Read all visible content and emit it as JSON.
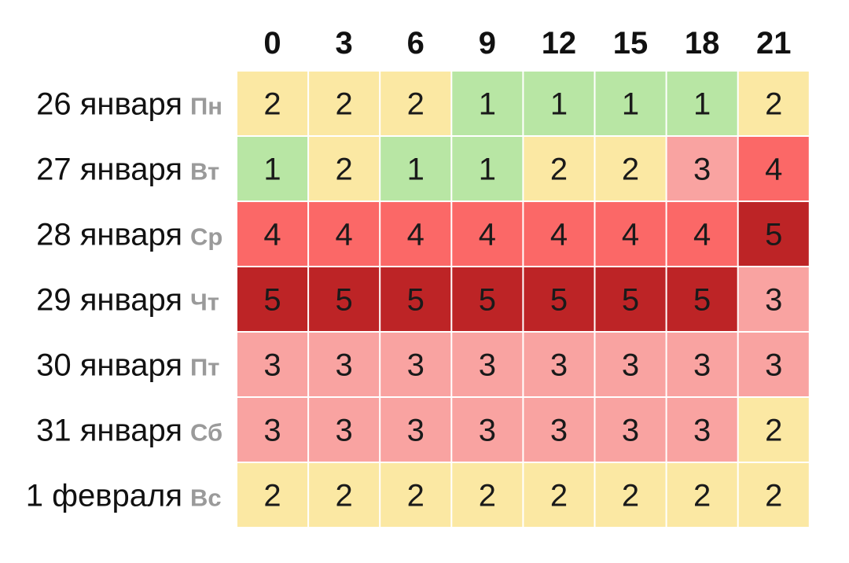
{
  "chart_data": {
    "type": "heatmap",
    "x": [
      "0",
      "3",
      "6",
      "9",
      "12",
      "15",
      "18",
      "21"
    ],
    "rows": [
      {
        "date": "26 января",
        "weekday": "Пн",
        "values": [
          2,
          2,
          2,
          1,
          1,
          1,
          1,
          2
        ]
      },
      {
        "date": "27 января",
        "weekday": "Вт",
        "values": [
          1,
          2,
          1,
          1,
          2,
          2,
          3,
          4
        ]
      },
      {
        "date": "28 января",
        "weekday": "Ср",
        "values": [
          4,
          4,
          4,
          4,
          4,
          4,
          4,
          5
        ]
      },
      {
        "date": "29 января",
        "weekday": "Чт",
        "values": [
          5,
          5,
          5,
          5,
          5,
          5,
          5,
          3
        ]
      },
      {
        "date": "30 января",
        "weekday": "Пт",
        "values": [
          3,
          3,
          3,
          3,
          3,
          3,
          3,
          3
        ]
      },
      {
        "date": "31 января",
        "weekday": "Сб",
        "values": [
          3,
          3,
          3,
          3,
          3,
          3,
          3,
          2
        ]
      },
      {
        "date": "1 февраля",
        "weekday": "Вс",
        "values": [
          2,
          2,
          2,
          2,
          2,
          2,
          2,
          2
        ]
      }
    ],
    "color_scale": {
      "1": "#b8e6a4",
      "2": "#fbe8a3",
      "3": "#f9a3a1",
      "4": "#fb6867",
      "5": "#bd2426"
    },
    "grid": true
  }
}
